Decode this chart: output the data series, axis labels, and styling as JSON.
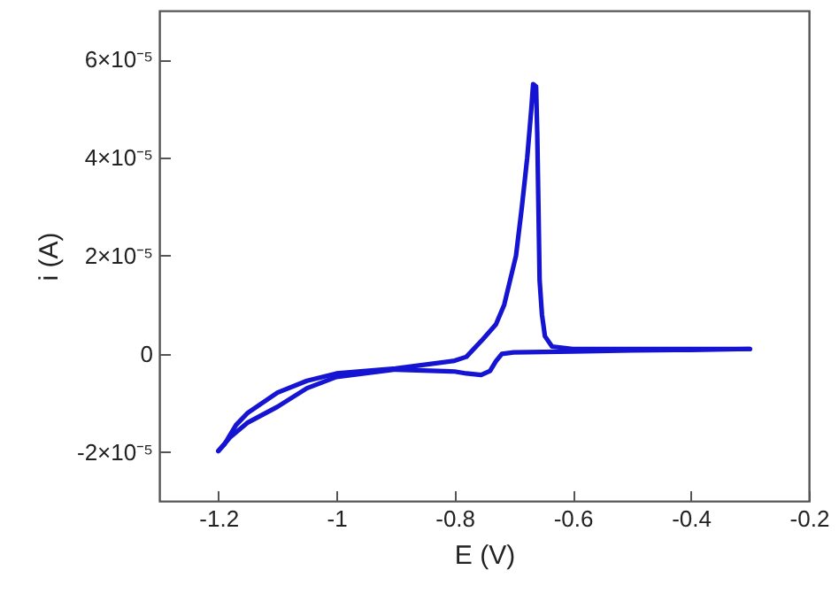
{
  "chart_data": {
    "type": "line",
    "xlabel": "E (V)",
    "ylabel": "i (A)",
    "xlim": [
      -1.3,
      -0.2
    ],
    "xticks": [
      -1.2,
      -1,
      -0.8,
      -0.6,
      -0.4,
      -0.2
    ],
    "ylim": [
      -3e-05,
      7e-05
    ],
    "yticks": [
      {
        "value": -2e-05,
        "label": "-2×10⁻⁵"
      },
      {
        "value": 0,
        "label": "0"
      },
      {
        "value": 2e-05,
        "label": "2×10⁻⁵"
      },
      {
        "value": 4e-05,
        "label": "4×10⁻⁵"
      },
      {
        "value": 6e-05,
        "label": "6×10⁻⁵"
      }
    ],
    "grid": false,
    "marker": "none",
    "line_style": "solid",
    "series": [
      {
        "color": "#1414d2",
        "x": [
          -0.3,
          -0.4,
          -0.5,
          -0.6,
          -0.7,
          -0.72,
          -0.73,
          -0.74,
          -0.755,
          -0.78,
          -0.8,
          -0.9,
          -1.0,
          -1.05,
          -1.1,
          -1.15,
          -1.18,
          -1.2
        ],
        "values": [
          1e-06,
          8e-07,
          7e-07,
          5e-07,
          3e-07,
          0,
          -1.5e-06,
          -3.5e-06,
          -4.3e-06,
          -4e-06,
          -3.6e-06,
          -3.2e-06,
          -4.7e-06,
          -7e-06,
          -1.08e-05,
          -1.4e-05,
          -1.7e-05,
          -1.98e-05
        ]
      },
      {
        "color": "#1414d2",
        "x": [
          -1.2,
          -1.19,
          -1.17,
          -1.15,
          -1.1,
          -1.05,
          -1.0,
          -0.9,
          -0.8,
          -0.78,
          -0.752,
          -0.73,
          -0.716,
          -0.696,
          -0.686,
          -0.677,
          -0.67,
          -0.667,
          -0.662,
          -0.66,
          -0.658,
          -0.656,
          -0.652,
          -0.647,
          -0.635,
          -0.6,
          -0.5,
          -0.4,
          -0.3
        ],
        "values": [
          -1.98e-05,
          -1.85e-05,
          -1.45e-05,
          -1.2e-05,
          -7.9e-06,
          -5.5e-06,
          -4e-06,
          -3e-06,
          -1.4e-06,
          -6e-07,
          3e-06,
          6e-06,
          1e-05,
          2e-05,
          3e-05,
          4e-05,
          5e-05,
          5.5e-05,
          5.45e-05,
          4.5e-05,
          3e-05,
          1.5e-05,
          8e-06,
          3.6e-06,
          1.5e-06,
          1e-06,
          1e-06,
          1e-06,
          1e-06
        ]
      }
    ]
  }
}
